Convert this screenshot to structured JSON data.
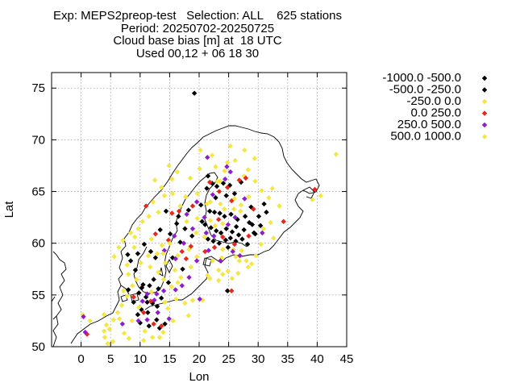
{
  "chart_data": {
    "type": "scatter",
    "title_lines": [
      "Exp: MEPS2preop-test   Selection: ALL    625 stations",
      "Period: 20250702-20250725",
      "Cloud base bias [m] at  18 UTC",
      "Used 00,12 + 06 18 30"
    ],
    "xlabel": "Lon",
    "ylabel": "Lat",
    "xlim": [
      -5,
      45
    ],
    "ylim": [
      50,
      76.5
    ],
    "xticks": [
      0,
      5,
      10,
      15,
      20,
      25,
      30,
      35,
      40,
      45
    ],
    "yticks": [
      50,
      55,
      60,
      65,
      70,
      75
    ],
    "grid": true,
    "legend_placement": "right",
    "series": [
      {
        "name": "-1000.0 -500.0",
        "color": "#000000",
        "points": [
          [
            19.2,
            74.5
          ],
          [
            21.5,
            66.5
          ],
          [
            22.2,
            65.8
          ],
          [
            23.0,
            65.5
          ],
          [
            24.1,
            65.8
          ],
          [
            25.2,
            65.6
          ],
          [
            26.0,
            64.8
          ],
          [
            27.1,
            65.9
          ],
          [
            21.8,
            63.1
          ],
          [
            22.6,
            63.0
          ],
          [
            23.5,
            62.9
          ],
          [
            24.3,
            62.6
          ],
          [
            25.4,
            62.8
          ],
          [
            26.5,
            62.3
          ],
          [
            27.8,
            62.6
          ],
          [
            28.5,
            62.0
          ],
          [
            22.0,
            61.5
          ],
          [
            22.9,
            61.2
          ],
          [
            23.7,
            61.0
          ],
          [
            24.6,
            61.4
          ],
          [
            25.6,
            61.1
          ],
          [
            26.7,
            60.8
          ],
          [
            27.6,
            61.3
          ],
          [
            29.0,
            61.8
          ],
          [
            21.5,
            60.4
          ],
          [
            22.4,
            60.2
          ],
          [
            23.4,
            60.0
          ],
          [
            24.5,
            60.3
          ],
          [
            25.3,
            60.5
          ],
          [
            26.2,
            60.2
          ],
          [
            28.2,
            59.9
          ],
          [
            29.5,
            60.9
          ],
          [
            20.5,
            62.1
          ],
          [
            21.0,
            61.8
          ],
          [
            18.2,
            63.2
          ],
          [
            17.6,
            61.4
          ],
          [
            16.2,
            61.9
          ],
          [
            15.1,
            60.9
          ],
          [
            13.4,
            61.3
          ],
          [
            16.8,
            60.1
          ],
          [
            15.5,
            58.6
          ],
          [
            17.2,
            57.5
          ],
          [
            11.8,
            59.2
          ],
          [
            10.7,
            59.9
          ],
          [
            9.6,
            59.0
          ],
          [
            8.4,
            58.3
          ],
          [
            12.3,
            56.5
          ],
          [
            10.5,
            56.0
          ],
          [
            9.8,
            55.2
          ],
          [
            11.0,
            54.8
          ],
          [
            12.1,
            54.2
          ],
          [
            13.6,
            54.7
          ],
          [
            8.9,
            54.3
          ],
          [
            10.2,
            53.6
          ],
          [
            11.3,
            53.3
          ],
          [
            12.8,
            52.6
          ],
          [
            14.2,
            52.2
          ],
          [
            10.0,
            52.3
          ],
          [
            11.5,
            52.0
          ],
          [
            13.3,
            51.8
          ],
          [
            24.8,
            55.4
          ],
          [
            31.0,
            63.8
          ],
          [
            30.1,
            62.6
          ],
          [
            29.3,
            61.0
          ]
        ]
      },
      {
        "name": "-500.0 -250.0",
        "color": "#000000",
        "points": [
          [
            21.3,
            65.3
          ],
          [
            22.8,
            64.4
          ],
          [
            24.6,
            64.6
          ],
          [
            20.3,
            63.7
          ],
          [
            28.8,
            63.5
          ],
          [
            30.4,
            61.7
          ],
          [
            31.4,
            63.0
          ],
          [
            26.3,
            61.6
          ],
          [
            27.3,
            60.4
          ],
          [
            24.9,
            59.6
          ],
          [
            16.5,
            62.6
          ],
          [
            18.8,
            60.7
          ],
          [
            14.4,
            63.1
          ],
          [
            12.6,
            58.6
          ],
          [
            7.9,
            58.9
          ],
          [
            9.2,
            57.4
          ],
          [
            14.8,
            56.2
          ],
          [
            13.1,
            55.6
          ],
          [
            11.6,
            55.9
          ],
          [
            10.3,
            55.7
          ],
          [
            8.0,
            55.5
          ],
          [
            11.2,
            54.3
          ],
          [
            12.9,
            53.9
          ],
          [
            9.6,
            53.1
          ]
        ]
      },
      {
        "name": "-250.0 0.0",
        "color": "#f5e642",
        "points": [
          [
            43.2,
            68.6
          ],
          [
            40.6,
            64.6
          ],
          [
            39.2,
            64.2
          ],
          [
            22.8,
            67.4
          ],
          [
            24.3,
            67.0
          ],
          [
            26.1,
            68.0
          ],
          [
            28.3,
            67.1
          ],
          [
            27.6,
            66.5
          ],
          [
            29.5,
            66.0
          ],
          [
            30.6,
            65.1
          ],
          [
            24.8,
            67.8
          ],
          [
            23.1,
            66.0
          ],
          [
            20.1,
            67.2
          ],
          [
            18.5,
            66.3
          ],
          [
            16.3,
            66.9
          ],
          [
            14.9,
            67.5
          ],
          [
            15.4,
            66.2
          ],
          [
            17.7,
            64.5
          ],
          [
            19.7,
            64.8
          ],
          [
            14.1,
            64.6
          ],
          [
            12.2,
            64.0
          ],
          [
            13.1,
            63.0
          ],
          [
            11.5,
            62.6
          ],
          [
            10.4,
            62.1
          ],
          [
            9.7,
            61.4
          ],
          [
            8.4,
            61.0
          ],
          [
            7.1,
            60.3
          ],
          [
            6.4,
            59.6
          ],
          [
            5.6,
            58.7
          ],
          [
            7.8,
            57.9
          ],
          [
            9.1,
            60.6
          ],
          [
            11.9,
            60.4
          ],
          [
            13.7,
            59.8
          ],
          [
            12.9,
            59.0
          ],
          [
            14.3,
            58.1
          ],
          [
            16.4,
            58.8
          ],
          [
            18.3,
            59.4
          ],
          [
            19.6,
            58.7
          ],
          [
            18.6,
            57.7
          ],
          [
            16.9,
            56.7
          ],
          [
            15.9,
            57.4
          ],
          [
            14.0,
            56.5
          ],
          [
            11.7,
            57.7
          ],
          [
            11.4,
            58.8
          ],
          [
            10.1,
            58.1
          ],
          [
            9.4,
            56.5
          ],
          [
            8.7,
            55.9
          ],
          [
            7.8,
            54.9
          ],
          [
            6.9,
            54.0
          ],
          [
            6.2,
            53.3
          ],
          [
            5.5,
            52.6
          ],
          [
            4.3,
            52.1
          ],
          [
            3.9,
            53.1
          ],
          [
            1.5,
            52.5
          ],
          [
            0.3,
            53.1
          ],
          [
            4.8,
            51.7
          ],
          [
            4.0,
            50.9
          ],
          [
            5.4,
            50.5
          ],
          [
            7.3,
            51.3
          ],
          [
            8.6,
            52.5
          ],
          [
            9.8,
            53.8
          ],
          [
            11.9,
            55.3
          ],
          [
            13.1,
            57.2
          ],
          [
            15.3,
            55.8
          ],
          [
            16.1,
            54.6
          ],
          [
            17.6,
            54.2
          ],
          [
            18.9,
            54.5
          ],
          [
            18.2,
            53.0
          ],
          [
            14.7,
            53.7
          ],
          [
            15.6,
            52.5
          ],
          [
            13.9,
            51.4
          ],
          [
            12.1,
            50.9
          ],
          [
            10.6,
            50.6
          ],
          [
            8.1,
            50.8
          ],
          [
            20.6,
            54.5
          ],
          [
            24.0,
            57.0
          ],
          [
            25.6,
            56.6
          ],
          [
            26.8,
            58.3
          ],
          [
            28.9,
            58.0
          ],
          [
            30.5,
            59.9
          ],
          [
            27.2,
            59.3
          ],
          [
            25.8,
            59.4
          ],
          [
            23.8,
            58.6
          ],
          [
            22.3,
            58.3
          ],
          [
            21.4,
            56.9
          ],
          [
            23.3,
            56.4
          ],
          [
            24.9,
            57.3
          ],
          [
            26.6,
            57.1
          ],
          [
            28.3,
            57.7
          ],
          [
            29.6,
            58.8
          ],
          [
            30.9,
            61.4
          ],
          [
            32.6,
            60.5
          ],
          [
            32.1,
            62.0
          ],
          [
            33.6,
            63.6
          ],
          [
            31.8,
            64.4
          ],
          [
            32.4,
            65.3
          ],
          [
            20.2,
            69.0
          ],
          [
            22.2,
            68.5
          ],
          [
            25.3,
            69.4
          ],
          [
            27.7,
            69.0
          ],
          [
            29.4,
            68.2
          ],
          [
            21.9,
            62.2
          ],
          [
            24.0,
            61.9
          ],
          [
            25.9,
            63.3
          ],
          [
            27.1,
            63.7
          ],
          [
            28.4,
            64.5
          ],
          [
            26.0,
            64.3
          ],
          [
            23.6,
            63.8
          ],
          [
            21.3,
            63.8
          ],
          [
            19.7,
            62.4
          ],
          [
            20.9,
            60.6
          ],
          [
            19.5,
            61.0
          ],
          [
            17.9,
            62.1
          ],
          [
            16.8,
            63.6
          ],
          [
            15.5,
            64.8
          ],
          [
            13.6,
            65.4
          ],
          [
            12.5,
            66.1
          ]
        ]
      },
      {
        "name": "0.0 250.0",
        "color": "#e8261a",
        "points": [
          [
            34.3,
            62.1
          ],
          [
            39.6,
            65.2
          ],
          [
            21.8,
            65.9
          ],
          [
            23.4,
            65.0
          ],
          [
            24.8,
            65.4
          ],
          [
            26.8,
            66.1
          ],
          [
            27.9,
            66.3
          ],
          [
            25.5,
            64.1
          ],
          [
            23.3,
            62.3
          ],
          [
            24.0,
            60.6
          ],
          [
            26.0,
            59.9
          ],
          [
            22.6,
            59.6
          ],
          [
            21.0,
            59.2
          ],
          [
            18.6,
            59.7
          ],
          [
            17.1,
            59.2
          ],
          [
            18.9,
            63.6
          ],
          [
            16.6,
            63.1
          ],
          [
            15.4,
            62.9
          ],
          [
            14.8,
            60.3
          ],
          [
            12.6,
            60.9
          ],
          [
            11.0,
            63.6
          ],
          [
            17.8,
            58.5
          ],
          [
            1.0,
            51.2
          ],
          [
            8.9,
            54.8
          ],
          [
            11.8,
            54.4
          ],
          [
            10.6,
            53.3
          ],
          [
            12.3,
            52.2
          ],
          [
            13.6,
            52.0
          ],
          [
            25.5,
            55.4
          ],
          [
            28.4,
            60.7
          ],
          [
            29.2,
            63.3
          ]
        ]
      },
      {
        "name": "250.0 500.0",
        "color": "#8f1ccf",
        "points": [
          [
            0.4,
            52.9
          ],
          [
            0.7,
            51.4
          ],
          [
            7.0,
            52.2
          ],
          [
            9.7,
            52.5
          ],
          [
            11.2,
            52.6
          ],
          [
            14.9,
            52.7
          ],
          [
            13.0,
            53.3
          ],
          [
            12.4,
            54.5
          ],
          [
            10.4,
            54.4
          ],
          [
            11.2,
            55.1
          ],
          [
            12.8,
            55.1
          ],
          [
            14.0,
            55.4
          ],
          [
            16.0,
            55.5
          ],
          [
            17.1,
            55.9
          ],
          [
            18.3,
            56.7
          ],
          [
            19.6,
            58.3
          ],
          [
            16.0,
            58.5
          ],
          [
            14.1,
            59.3
          ],
          [
            15.8,
            60.7
          ],
          [
            17.4,
            60.0
          ],
          [
            17.9,
            62.8
          ],
          [
            18.9,
            61.4
          ],
          [
            19.6,
            64.0
          ],
          [
            20.9,
            62.5
          ],
          [
            24.4,
            66.2
          ],
          [
            25.3,
            66.9
          ],
          [
            21.4,
            68.3
          ],
          [
            24.7,
            67.4
          ],
          [
            22.3,
            64.7
          ],
          [
            27.7,
            64.3
          ],
          [
            26.1,
            62.5
          ],
          [
            24.9,
            61.8
          ],
          [
            22.5,
            60.7
          ],
          [
            21.2,
            61.0
          ],
          [
            21.6,
            59.3
          ],
          [
            23.6,
            58.3
          ],
          [
            25.7,
            59.2
          ],
          [
            30.7,
            61.0
          ],
          [
            26.9,
            58.8
          ],
          [
            20.1,
            54.6
          ]
        ]
      },
      {
        "name": "500.0 1000.0",
        "color": "#f5e642",
        "points": [
          [
            23.5,
            66.0
          ],
          [
            21.9,
            64.0
          ],
          [
            24.3,
            63.3
          ],
          [
            27.0,
            63.1
          ],
          [
            22.7,
            61.7
          ],
          [
            24.0,
            59.4
          ],
          [
            26.2,
            58.7
          ],
          [
            28.0,
            58.3
          ],
          [
            13.9,
            59.0
          ],
          [
            15.0,
            60.0
          ],
          [
            9.0,
            59.6
          ],
          [
            8.0,
            57.0
          ],
          [
            7.2,
            55.4
          ],
          [
            6.5,
            52.7
          ],
          [
            10.8,
            51.5
          ],
          [
            13.3,
            50.9
          ],
          [
            3.9,
            51.5
          ],
          [
            4.5,
            50.3
          ],
          [
            21.8,
            56.6
          ],
          [
            23.3,
            57.4
          ],
          [
            16.4,
            56.2
          ],
          [
            14.2,
            54.3
          ]
        ]
      }
    ]
  }
}
